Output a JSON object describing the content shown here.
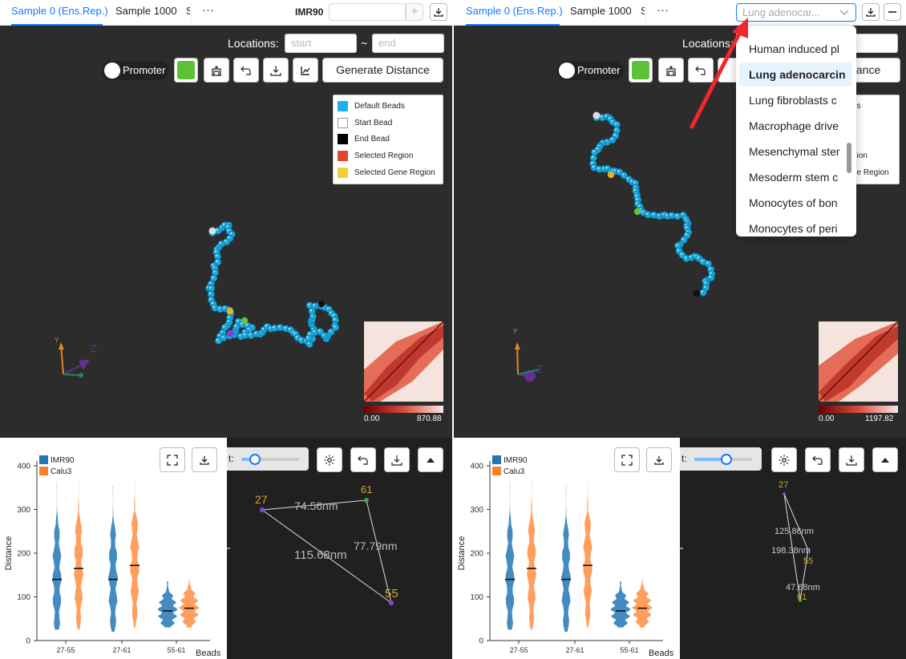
{
  "left": {
    "tabs": [
      {
        "label": "Sample 0 (Ens.Rep.)",
        "active": true
      },
      {
        "label": "Sample 1000",
        "active": false
      },
      {
        "label": "Sa",
        "active": false
      }
    ],
    "more_label": "···",
    "cell_line_label": "IMR90",
    "cell_input_value": "",
    "add_label": "+",
    "locations": {
      "label": "Locations:",
      "start_placeholder": "start",
      "sep": "~",
      "end_placeholder": "end"
    },
    "promoter_label": "Promoter",
    "generate_label": "Generate Distance",
    "legend": [
      {
        "label": "Default Beads",
        "color": "#19b2ec"
      },
      {
        "label": "Start Bead",
        "color": "#ffffff"
      },
      {
        "label": "End Bead",
        "color": "#000000"
      },
      {
        "label": "Selected Region",
        "color": "#e2452f"
      },
      {
        "label": "Selected Gene Region",
        "color": "#f5ce38"
      }
    ],
    "axes": {
      "y": "Y",
      "z": "Z"
    },
    "colorbar": {
      "min": "0.00",
      "max": "870.88"
    },
    "violin": {
      "legend": [
        {
          "label": "IMR90",
          "color": "#2377b4"
        },
        {
          "label": "Calu3",
          "color": "#fd7f28"
        }
      ],
      "ylabel": "Distance",
      "xlabel": "Beads",
      "yticks": [
        "0",
        "100",
        "200",
        "300",
        "400"
      ],
      "categories": [
        "27-55",
        "27-61",
        "55-61"
      ]
    },
    "distance_graph": {
      "nodes": [
        {
          "label": "27"
        },
        {
          "label": "61"
        },
        {
          "label": "55"
        }
      ],
      "edges": [
        {
          "label": "74.56nm"
        },
        {
          "label": "77.79nm"
        },
        {
          "label": "115.68nm"
        }
      ],
      "control_label": "t:"
    }
  },
  "right": {
    "tabs": [
      {
        "label": "Sample 0 (Ens.Rep.)",
        "active": true
      },
      {
        "label": "Sample 1000",
        "active": false
      },
      {
        "label": "S",
        "active": false
      }
    ],
    "more_label": "···",
    "cell_select_value": "Lung adenocar...",
    "locations": {
      "label": "Locations:"
    },
    "promoter_label": "Promoter",
    "generate_label_visible": "tance",
    "legend_partial": [
      "ds",
      "gion",
      "ne Region"
    ],
    "axes": {
      "y": "Y",
      "z": "Z"
    },
    "colorbar": {
      "min": "0.00",
      "max": "1197.82"
    },
    "dropdown": {
      "items": [
        {
          "label": "Human induced pl"
        },
        {
          "label": "Lung adenocarcin",
          "selected": true
        },
        {
          "label": "Lung fibroblasts c"
        },
        {
          "label": "Macrophage drive"
        },
        {
          "label": "Mesenchymal ster"
        },
        {
          "label": "Mesoderm stem c"
        },
        {
          "label": "Monocytes of bon"
        },
        {
          "label": "Monocytes of peri"
        }
      ]
    },
    "violin": {
      "legend": [
        {
          "label": "IMR90",
          "color": "#2377b4"
        },
        {
          "label": "Calu3",
          "color": "#fd7f28"
        }
      ],
      "ylabel": "Distance",
      "xlabel": "Beads",
      "yticks": [
        "0",
        "100",
        "200",
        "300",
        "400"
      ],
      "categories": [
        "27-55",
        "27-61",
        "55-61"
      ]
    },
    "distance_graph": {
      "nodes": [
        {
          "label": "27"
        },
        {
          "label": "55"
        },
        {
          "label": "61"
        }
      ],
      "edges": [
        {
          "label": "125.86nm"
        },
        {
          "label": "198.38nm"
        },
        {
          "label": "47.68nm"
        }
      ],
      "control_label": "t:"
    }
  },
  "chart_data": [
    {
      "type": "violin",
      "title": "",
      "xlabel": "Beads",
      "ylabel": "Distance",
      "ylim": [
        0,
        400
      ],
      "categories": [
        "27-55",
        "27-61",
        "55-61"
      ],
      "series": [
        {
          "name": "IMR90",
          "medians": [
            140,
            140,
            68
          ],
          "ranges": [
            [
              25,
              365
            ],
            [
              20,
              355
            ],
            [
              30,
              135
            ]
          ]
        },
        {
          "name": "Calu3",
          "medians": [
            165,
            172,
            74
          ],
          "ranges": [
            [
              25,
              365
            ],
            [
              30,
              368
            ],
            [
              30,
              138
            ]
          ]
        }
      ]
    },
    {
      "type": "violin",
      "title": "",
      "xlabel": "Beads",
      "ylabel": "Distance",
      "ylim": [
        0,
        400
      ],
      "categories": [
        "27-55",
        "27-61",
        "55-61"
      ],
      "series": [
        {
          "name": "IMR90",
          "medians": [
            140,
            140,
            68
          ],
          "ranges": [
            [
              25,
              365
            ],
            [
              20,
              355
            ],
            [
              30,
              135
            ]
          ]
        },
        {
          "name": "Calu3",
          "medians": [
            165,
            172,
            74
          ],
          "ranges": [
            [
              25,
              365
            ],
            [
              30,
              368
            ],
            [
              30,
              138
            ]
          ]
        }
      ]
    }
  ]
}
